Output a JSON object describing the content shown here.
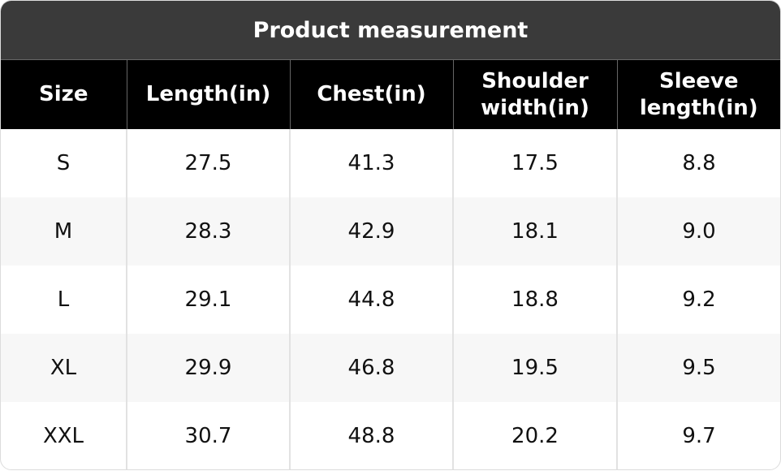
{
  "table": {
    "title": "Product measurement",
    "columns": [
      "Size",
      "Length(in)",
      "Chest(in)",
      "Shoulder width(in)",
      "Sleeve length(in)"
    ],
    "rows": [
      [
        "S",
        "27.5",
        "41.3",
        "17.5",
        "8.8"
      ],
      [
        "M",
        "28.3",
        "42.9",
        "18.1",
        "9.0"
      ],
      [
        "L",
        "29.1",
        "44.8",
        "18.8",
        "9.2"
      ],
      [
        "XL",
        "29.9",
        "46.8",
        "19.5",
        "9.5"
      ],
      [
        "XXL",
        "30.7",
        "48.8",
        "20.2",
        "9.7"
      ]
    ]
  }
}
